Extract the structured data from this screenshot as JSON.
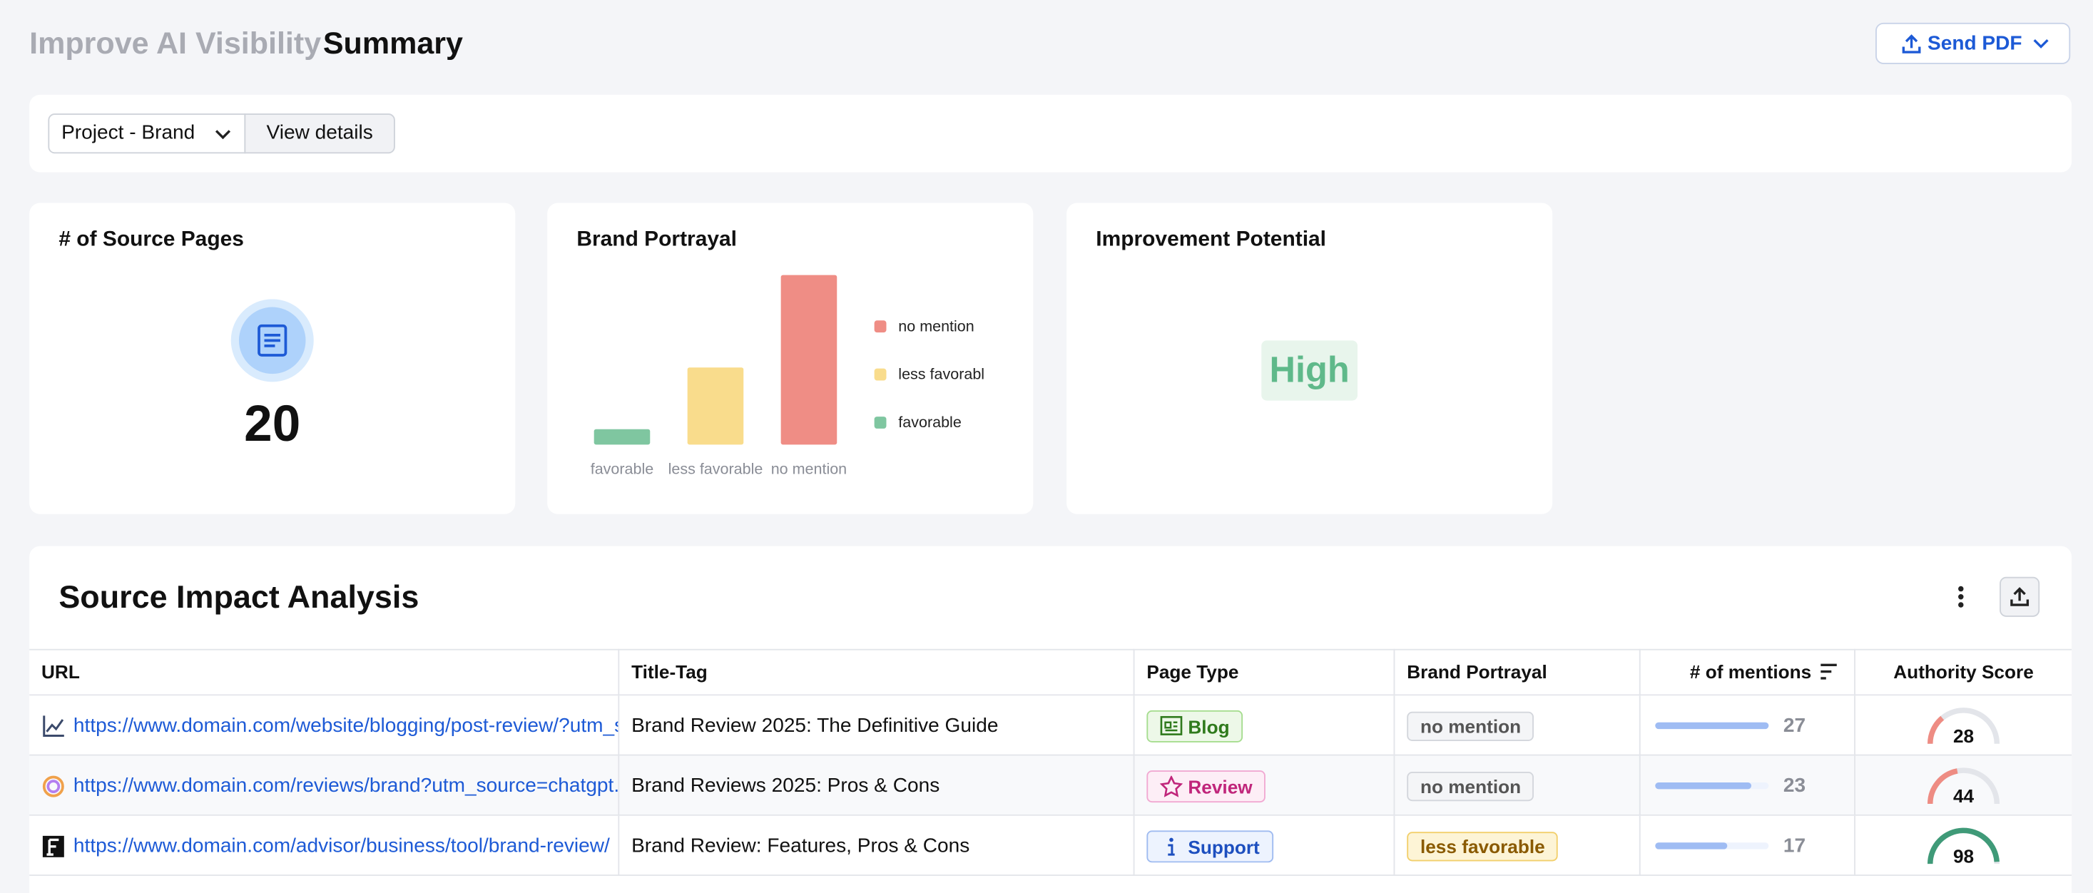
{
  "header": {
    "breadcrumb": "Improve AI Visibility",
    "title": "Summary",
    "send_button": "Send PDF"
  },
  "toolbar": {
    "project": "Project - Brand",
    "view_details": "View details"
  },
  "cards": {
    "source_pages": {
      "title": "# of Source Pages",
      "value": 20
    },
    "brand_portrayal": {
      "title": "Brand Portrayal",
      "chart_data": {
        "type": "bar",
        "categories": [
          "favorable",
          "less favorable",
          "no mention"
        ],
        "values": [
          1,
          5,
          11
        ],
        "colors": [
          "#7fc6a0",
          "#f9dc8c",
          "#ef8d85"
        ]
      }
    },
    "improvement": {
      "title": "Improvement Potential",
      "value": "High"
    }
  },
  "table": {
    "title": "Source Impact Analysis",
    "columns": [
      "URL",
      "Title-Tag",
      "Page Type",
      "Brand Portrayal",
      "# of mentions",
      "Authority Score"
    ],
    "rows": [
      {
        "url": "https://www.domain.com/website/blogging/post-review/?utm_source=chatgpt.com",
        "title_tag": "Brand Review 2025: The Definitive Guide",
        "page_type": "Blog",
        "portrayal": "no mention",
        "mentions": 27,
        "authority": 28
      },
      {
        "url": "https://www.domain.com/reviews/brand?utm_source=chatgpt.com",
        "title_tag": "Brand Reviews 2025: Pros & Cons",
        "page_type": "Review",
        "portrayal": "no mention",
        "mentions": 23,
        "authority": 44
      },
      {
        "url": "https://www.domain.com/advisor/business/tool/brand-review/",
        "title_tag": "Brand Review: Features, Pros & Cons",
        "page_type": "Support",
        "portrayal": "less favorable",
        "mentions": 17,
        "authority": 98
      }
    ]
  }
}
